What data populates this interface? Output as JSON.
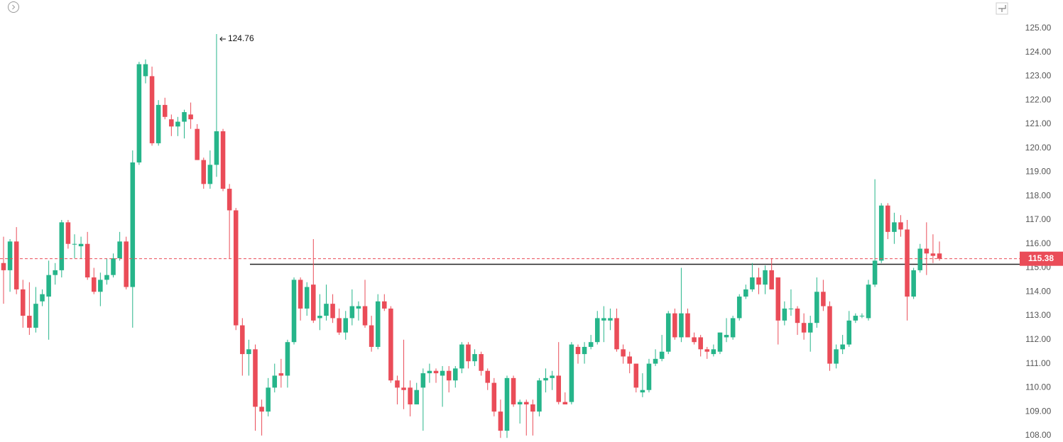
{
  "chart_data": {
    "type": "candlestick",
    "up_color": "#26b58a",
    "down_color": "#ea4c58",
    "ylim": [
      107.73,
      126.18
    ],
    "yticks": [
      {
        "value": 108,
        "label": "108.00"
      },
      {
        "value": 109,
        "label": "109.00"
      },
      {
        "value": 110,
        "label": "110.00"
      },
      {
        "value": 111,
        "label": "111.00"
      },
      {
        "value": 112,
        "label": "112.00"
      },
      {
        "value": 113,
        "label": "113.00"
      },
      {
        "value": 114,
        "label": "114.00"
      },
      {
        "value": 115,
        "label": "115.00"
      },
      {
        "value": 116,
        "label": "116.00"
      },
      {
        "value": 117,
        "label": "117.00"
      },
      {
        "value": 118,
        "label": "118.00"
      },
      {
        "value": 119,
        "label": "119.00"
      },
      {
        "value": 120,
        "label": "120.00"
      },
      {
        "value": 121,
        "label": "121.00"
      },
      {
        "value": 122,
        "label": "122.00"
      },
      {
        "value": 123,
        "label": "123.00"
      },
      {
        "value": 124,
        "label": "124.00"
      },
      {
        "value": 125,
        "label": "125.00"
      }
    ],
    "grid": false,
    "horizontal_line": 115.15,
    "ohlc": [
      [
        115.2,
        116.3,
        113.5,
        114.9
      ],
      [
        114.9,
        116.2,
        114.0,
        116.1
      ],
      [
        116.1,
        116.7,
        113.9,
        114.1
      ],
      [
        114.1,
        114.5,
        112.5,
        113.0
      ],
      [
        113.0,
        114.4,
        112.2,
        112.5
      ],
      [
        112.5,
        114.2,
        112.3,
        113.5
      ],
      [
        113.6,
        114.1,
        113.4,
        113.9
      ],
      [
        113.8,
        115.3,
        112.0,
        114.7
      ],
      [
        114.7,
        115.2,
        114.3,
        114.9
      ],
      [
        114.9,
        117.0,
        114.6,
        116.9
      ],
      [
        116.9,
        117.0,
        115.8,
        116.0
      ],
      [
        116.0,
        116.4,
        115.4,
        116.0
      ],
      [
        115.9,
        116.3,
        115.4,
        116.0
      ],
      [
        116.0,
        116.5,
        114.5,
        114.6
      ],
      [
        114.6,
        115.0,
        113.9,
        114.0
      ],
      [
        114.0,
        114.8,
        113.4,
        114.5
      ],
      [
        114.5,
        115.4,
        114.3,
        114.7
      ],
      [
        114.7,
        115.6,
        114.6,
        115.4
      ],
      [
        115.4,
        116.5,
        115.3,
        116.1
      ],
      [
        116.1,
        116.3,
        114.1,
        114.2
      ],
      [
        114.2,
        119.9,
        112.5,
        119.4
      ],
      [
        119.4,
        123.6,
        119.3,
        123.5
      ],
      [
        123.0,
        123.7,
        122.7,
        123.5
      ],
      [
        123.0,
        123.4,
        120.1,
        120.2
      ],
      [
        120.2,
        122.0,
        120.1,
        121.8
      ],
      [
        121.8,
        122.1,
        121.2,
        121.3
      ],
      [
        121.2,
        121.4,
        120.5,
        120.9
      ],
      [
        120.9,
        121.3,
        120.5,
        121.1
      ],
      [
        121.1,
        121.6,
        120.4,
        121.5
      ],
      [
        121.4,
        121.9,
        120.8,
        121.2
      ],
      [
        120.8,
        121.0,
        119.5,
        119.5
      ],
      [
        119.5,
        119.6,
        118.3,
        118.5
      ],
      [
        118.5,
        119.9,
        118.3,
        119.3
      ],
      [
        119.3,
        124.76,
        118.8,
        120.7
      ],
      [
        120.7,
        120.8,
        118.2,
        118.3
      ],
      [
        118.3,
        118.5,
        115.4,
        117.4
      ],
      [
        117.4,
        117.5,
        112.4,
        112.6
      ],
      [
        112.6,
        112.9,
        110.5,
        111.4
      ],
      [
        111.4,
        112.0,
        110.5,
        111.6
      ],
      [
        111.6,
        111.8,
        108.2,
        109.2
      ],
      [
        109.2,
        109.5,
        108.0,
        109.0
      ],
      [
        109.0,
        110.4,
        108.8,
        110.0
      ],
      [
        110.0,
        111.0,
        109.8,
        110.5
      ],
      [
        110.6,
        111.2,
        110.0,
        110.5
      ],
      [
        110.5,
        112.0,
        110.0,
        111.9
      ],
      [
        111.9,
        114.6,
        111.8,
        114.5
      ],
      [
        114.5,
        114.6,
        112.8,
        113.3
      ],
      [
        113.3,
        114.4,
        113.0,
        114.2
      ],
      [
        114.3,
        116.2,
        112.7,
        112.8
      ],
      [
        112.9,
        113.9,
        112.4,
        113.0
      ],
      [
        113.0,
        114.3,
        112.8,
        113.5
      ],
      [
        113.5,
        113.9,
        112.7,
        112.9
      ],
      [
        112.9,
        113.3,
        112.2,
        112.3
      ],
      [
        112.3,
        113.2,
        112.0,
        112.9
      ],
      [
        112.9,
        114.1,
        112.6,
        113.4
      ],
      [
        113.3,
        113.6,
        112.8,
        113.4
      ],
      [
        113.4,
        114.5,
        112.5,
        112.6
      ],
      [
        112.6,
        113.0,
        111.5,
        111.7
      ],
      [
        111.7,
        113.9,
        111.6,
        113.6
      ],
      [
        113.6,
        113.9,
        113.2,
        113.3
      ],
      [
        113.3,
        113.4,
        110.2,
        110.3
      ],
      [
        110.3,
        110.5,
        109.3,
        110.0
      ],
      [
        110.0,
        112.0,
        109.1,
        109.9
      ],
      [
        110.0,
        110.3,
        108.8,
        109.3
      ],
      [
        109.3,
        110.2,
        109.3,
        109.9
      ],
      [
        110.0,
        110.8,
        108.2,
        110.6
      ],
      [
        110.6,
        111.0,
        110.2,
        110.7
      ],
      [
        110.7,
        110.8,
        110.2,
        110.6
      ],
      [
        110.5,
        110.9,
        109.2,
        110.7
      ],
      [
        110.7,
        110.9,
        109.8,
        110.3
      ],
      [
        110.3,
        110.9,
        110.0,
        110.8
      ],
      [
        110.8,
        111.9,
        110.6,
        111.8
      ],
      [
        111.8,
        111.9,
        110.8,
        111.1
      ],
      [
        111.1,
        111.6,
        110.9,
        111.4
      ],
      [
        111.4,
        111.5,
        110.5,
        110.7
      ],
      [
        110.7,
        110.8,
        109.9,
        110.2
      ],
      [
        110.2,
        110.4,
        108.8,
        109.0
      ],
      [
        109.0,
        109.5,
        107.9,
        108.2
      ],
      [
        108.2,
        110.5,
        107.9,
        110.4
      ],
      [
        110.4,
        110.5,
        109.2,
        109.3
      ],
      [
        109.3,
        109.5,
        108.5,
        109.4
      ],
      [
        109.4,
        109.5,
        108.0,
        109.3
      ],
      [
        109.3,
        109.5,
        108.0,
        109.0
      ],
      [
        109.0,
        110.4,
        108.8,
        110.3
      ],
      [
        110.3,
        110.8,
        109.8,
        110.4
      ],
      [
        110.4,
        110.7,
        109.9,
        110.5
      ],
      [
        110.5,
        111.9,
        109.3,
        109.4
      ],
      [
        109.4,
        109.8,
        109.3,
        109.3
      ],
      [
        109.4,
        111.9,
        109.3,
        111.8
      ],
      [
        111.7,
        111.8,
        111.0,
        111.4
      ],
      [
        111.4,
        111.9,
        111.0,
        111.7
      ],
      [
        111.7,
        112.2,
        111.6,
        111.9
      ],
      [
        111.9,
        113.2,
        111.8,
        112.9
      ],
      [
        112.8,
        113.4,
        111.9,
        112.9
      ],
      [
        112.8,
        113.3,
        112.4,
        112.9
      ],
      [
        112.9,
        113.3,
        111.5,
        111.6
      ],
      [
        111.6,
        111.8,
        111.0,
        111.3
      ],
      [
        111.3,
        111.5,
        110.6,
        111.0
      ],
      [
        111.0,
        111.0,
        109.8,
        110.0
      ],
      [
        109.8,
        110.6,
        109.6,
        109.9
      ],
      [
        109.9,
        111.2,
        109.8,
        111.0
      ],
      [
        111.0,
        111.6,
        110.9,
        111.2
      ],
      [
        111.2,
        112.2,
        111.1,
        111.5
      ],
      [
        111.5,
        113.2,
        111.4,
        113.1
      ],
      [
        113.1,
        113.3,
        112.0,
        112.1
      ],
      [
        112.1,
        115.0,
        111.9,
        113.1
      ],
      [
        113.1,
        113.3,
        112.1,
        112.1
      ],
      [
        112.1,
        112.3,
        111.8,
        111.9
      ],
      [
        112.1,
        112.2,
        111.3,
        111.6
      ],
      [
        111.6,
        111.7,
        111.2,
        111.5
      ],
      [
        111.4,
        111.8,
        111.3,
        111.6
      ],
      [
        111.5,
        112.3,
        111.4,
        112.3
      ],
      [
        112.1,
        112.9,
        111.9,
        112.2
      ],
      [
        112.1,
        113.0,
        112.0,
        112.9
      ],
      [
        112.9,
        113.9,
        112.8,
        113.8
      ],
      [
        113.8,
        114.3,
        113.7,
        114.1
      ],
      [
        114.1,
        115.2,
        114.0,
        114.6
      ],
      [
        114.6,
        115.0,
        113.9,
        114.3
      ],
      [
        114.3,
        115.1,
        113.9,
        114.9
      ],
      [
        114.9,
        115.4,
        114.1,
        114.1
      ],
      [
        114.6,
        114.6,
        111.8,
        112.8
      ],
      [
        112.8,
        113.6,
        112.6,
        113.3
      ],
      [
        113.3,
        114.1,
        113.0,
        113.3
      ],
      [
        113.3,
        113.4,
        112.2,
        112.7
      ],
      [
        112.7,
        113.1,
        112.0,
        112.3
      ],
      [
        112.3,
        113.0,
        111.5,
        112.7
      ],
      [
        112.7,
        114.6,
        112.5,
        114.0
      ],
      [
        114.0,
        114.5,
        113.2,
        113.4
      ],
      [
        113.4,
        113.6,
        110.7,
        111.0
      ],
      [
        111.0,
        111.8,
        110.8,
        111.6
      ],
      [
        111.6,
        112.2,
        111.4,
        111.8
      ],
      [
        111.8,
        113.2,
        111.7,
        112.8
      ],
      [
        112.8,
        113.1,
        112.7,
        113.0
      ],
      [
        113.0,
        113.1,
        112.9,
        113.0
      ],
      [
        112.9,
        114.5,
        112.8,
        114.3
      ],
      [
        114.3,
        118.7,
        114.2,
        115.3
      ],
      [
        115.3,
        117.7,
        115.2,
        117.6
      ],
      [
        117.6,
        117.7,
        116.2,
        116.5
      ],
      [
        116.5,
        117.3,
        116.0,
        116.9
      ],
      [
        116.9,
        117.2,
        116.3,
        116.6
      ],
      [
        116.6,
        117.0,
        112.8,
        113.8
      ],
      [
        113.8,
        115.0,
        113.7,
        114.9
      ],
      [
        114.9,
        116.0,
        114.8,
        115.8
      ],
      [
        115.8,
        116.9,
        114.7,
        115.6
      ],
      [
        115.6,
        116.4,
        115.2,
        115.5
      ],
      [
        115.6,
        116.1,
        115.3,
        115.38
      ]
    ]
  }
}
